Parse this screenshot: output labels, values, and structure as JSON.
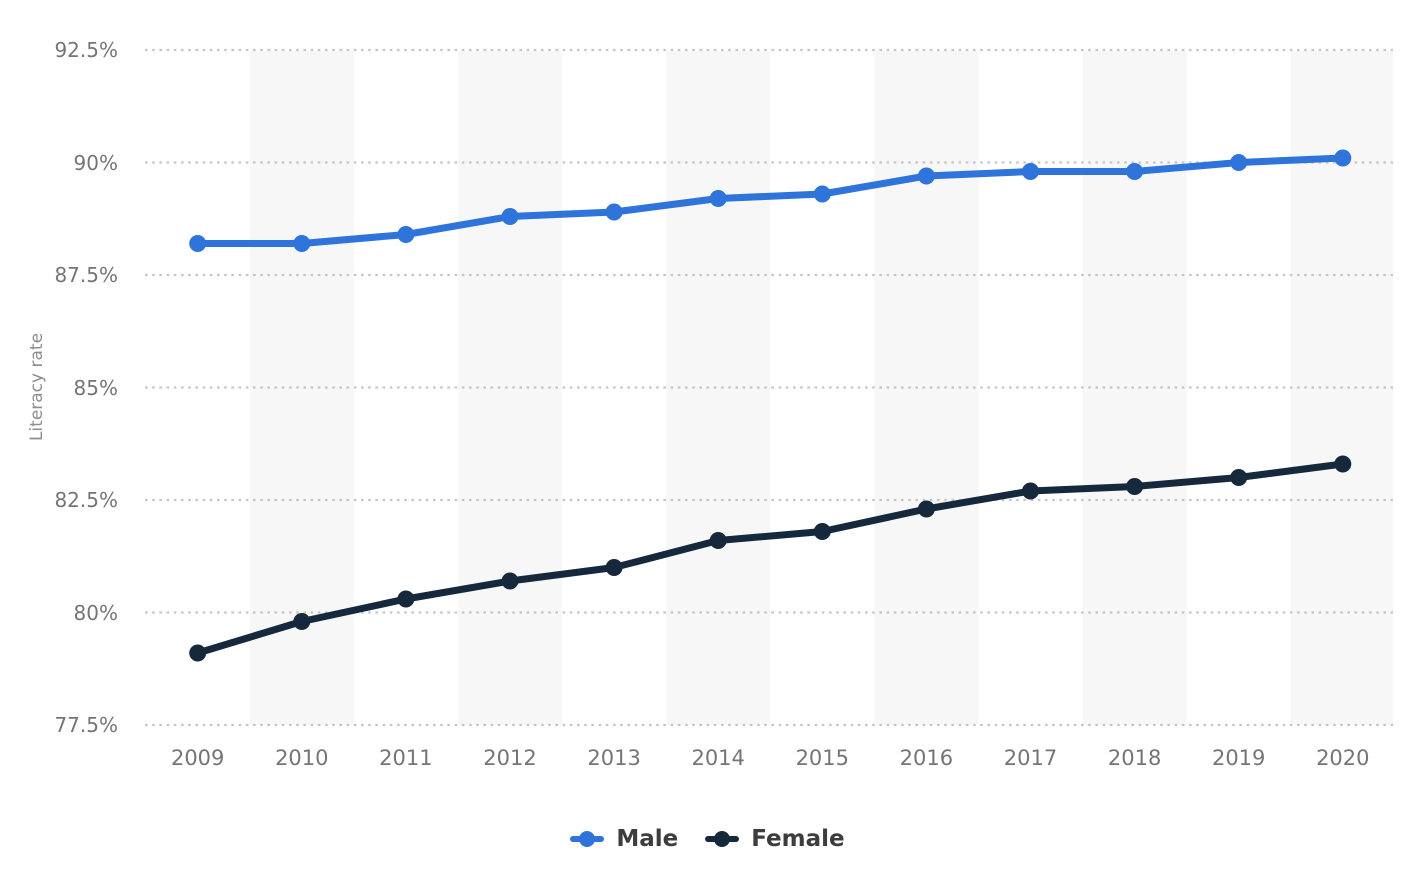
{
  "page": {
    "background": "#ffffff"
  },
  "chart_data": {
    "type": "line",
    "title": "",
    "xlabel": "",
    "ylabel": "Literacy rate",
    "x": [
      2009,
      2010,
      2011,
      2012,
      2013,
      2014,
      2015,
      2016,
      2017,
      2018,
      2019,
      2020
    ],
    "series": [
      {
        "name": "Male",
        "color": "#2e74db",
        "values": [
          88.2,
          88.2,
          88.4,
          88.8,
          88.9,
          89.2,
          89.3,
          89.7,
          89.8,
          89.8,
          90.0,
          90.1
        ]
      },
      {
        "name": "Female",
        "color": "#16293c",
        "values": [
          79.1,
          79.8,
          80.3,
          80.7,
          81.0,
          81.6,
          81.8,
          82.3,
          82.7,
          82.8,
          83.0,
          83.3
        ]
      }
    ],
    "ylim": [
      77.5,
      92.5
    ],
    "yticks": [
      77.5,
      80,
      82.5,
      85,
      87.5,
      90,
      92.5
    ],
    "ytick_labels": [
      "77.5%",
      "80%",
      "82.5%",
      "85%",
      "87.5%",
      "90%",
      "92.5%"
    ],
    "grid": "horizontal dotted",
    "legend_position": "bottom",
    "background_bands": "alternating vertical stripes on even-year columns",
    "colors": {
      "band": "#f7f7f7",
      "gridline": "#c6c6c6",
      "tick_text": "#757575",
      "axis_title_text": "#8e8e8e",
      "legend_text": "#3d3d3d"
    }
  }
}
